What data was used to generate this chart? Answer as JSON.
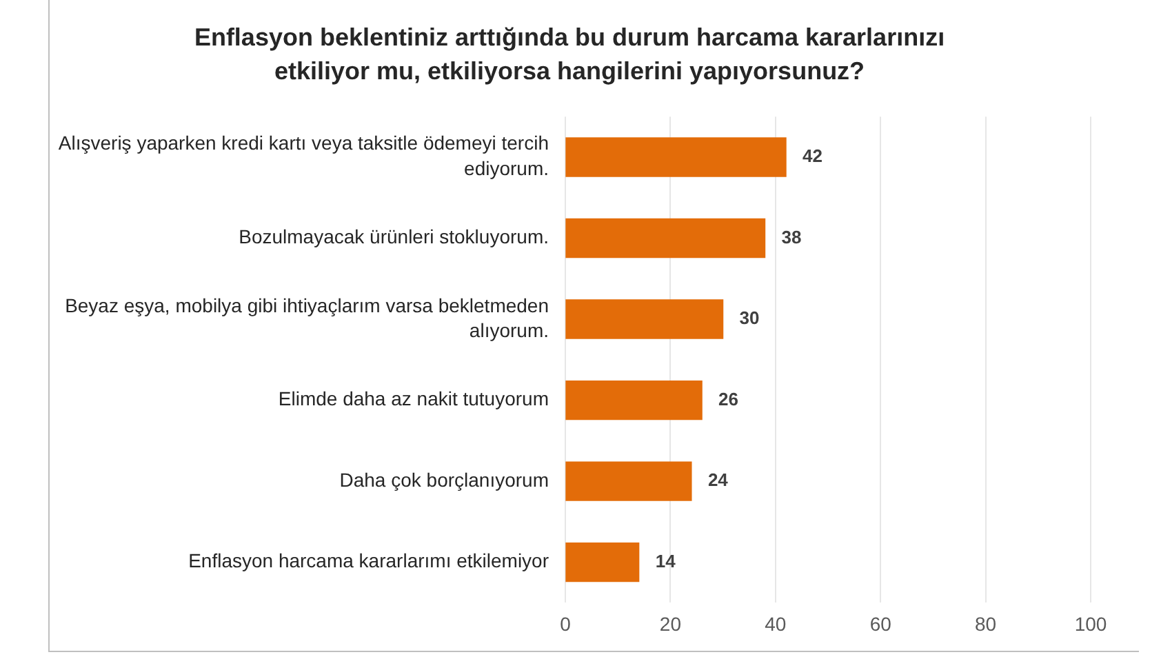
{
  "chart_data": {
    "type": "bar",
    "orientation": "horizontal",
    "title": "Enflasyon beklentiniz arttığında bu durum harcama kararlarınızı etkiliyor mu, etkiliyorsa hangilerini yapıyorsunuz?",
    "categories": [
      "Alışveriş yaparken kredi kartı veya taksitle ödemeyi tercih ediyorum.",
      "Bozulmayacak ürünleri stokluyorum.",
      "Beyaz eşya, mobilya gibi ihtiyaçlarım varsa bekletmeden alıyorum.",
      "Elimde daha az nakit tutuyorum",
      "Daha çok borçlanıyorum",
      "Enflasyon harcama kararlarımı etkilemiyor"
    ],
    "values": [
      42,
      38,
      30,
      26,
      24,
      14
    ],
    "color": "#e36c09",
    "xlim": [
      0,
      100
    ],
    "xticks": [
      0,
      20,
      40,
      60,
      80,
      100
    ],
    "grid": "x",
    "data_labels": true,
    "legend": false
  }
}
